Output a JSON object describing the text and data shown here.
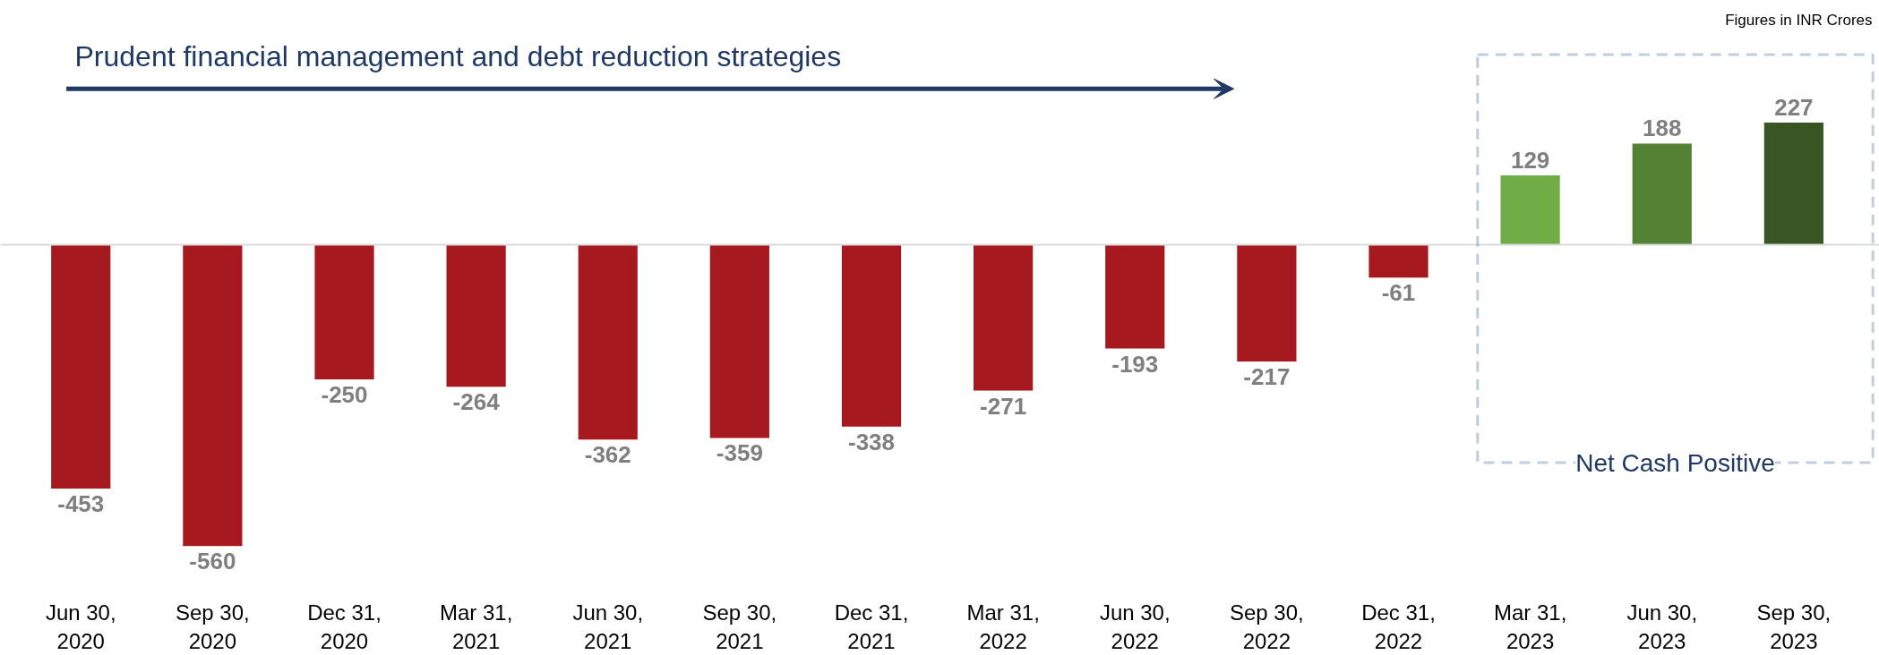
{
  "chart_data": {
    "type": "bar",
    "title": "Prudent financial management and debt reduction strategies",
    "categories": [
      "Jun 30, 2020",
      "Sep 30, 2020",
      "Dec 31, 2020",
      "Mar 31, 2021",
      "Jun 30, 2021",
      "Sep 30, 2021",
      "Dec 31, 2021",
      "Mar 31, 2022",
      "Jun 30, 2022",
      "Sep 30, 2022",
      "Dec 31, 2022",
      "Mar 31, 2023",
      "Jun 30, 2023",
      "Sep 30, 2023"
    ],
    "values": [
      -453,
      -560,
      -250,
      -264,
      -362,
      -359,
      -338,
      -271,
      -193,
      -217,
      -61,
      129,
      188,
      227
    ],
    "colors": [
      "#a6191e",
      "#a6191e",
      "#a6191e",
      "#a6191e",
      "#a6191e",
      "#a6191e",
      "#a6191e",
      "#a6191e",
      "#a6191e",
      "#a6191e",
      "#a6191e",
      "#70ad47",
      "#548235",
      "#375623"
    ],
    "data_labels": true,
    "annotations": [
      "Figures in INR Crores",
      "Net Cash Positive"
    ],
    "tick_labels": "x",
    "grid": false
  }
}
